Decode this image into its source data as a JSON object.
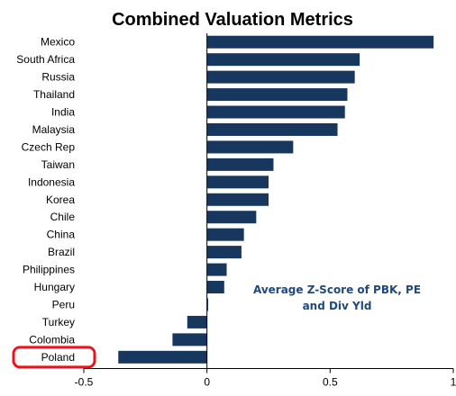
{
  "colors": {
    "bar": "#17375e",
    "annotation": "#1f497d",
    "highlight": "#e8141b",
    "axis": "#000000"
  },
  "chart_data": {
    "type": "bar",
    "orientation": "horizontal",
    "title": "Combined Valuation Metrics",
    "categories": [
      "Mexico",
      "South Africa",
      "Russia",
      "Thailand",
      "India",
      "Malaysia",
      "Czech Rep",
      "Taiwan",
      "Indonesia",
      "Korea",
      "Chile",
      "China",
      "Brazil",
      "Philippines",
      "Hungary",
      "Peru",
      "Turkey",
      "Colombia",
      "Poland"
    ],
    "values": [
      0.92,
      0.62,
      0.6,
      0.57,
      0.56,
      0.53,
      0.35,
      0.27,
      0.25,
      0.25,
      0.2,
      0.15,
      0.14,
      0.08,
      0.07,
      0.005,
      -0.08,
      -0.14,
      -0.36
    ],
    "xticks": [
      "-0.5",
      "0",
      "0.5",
      "1"
    ],
    "xlim": [
      -0.5,
      1
    ],
    "grid": false,
    "annotation": [
      "Average Z-Score of PBK, PE",
      "and Div Yld"
    ],
    "highlighted_category": "Poland"
  }
}
